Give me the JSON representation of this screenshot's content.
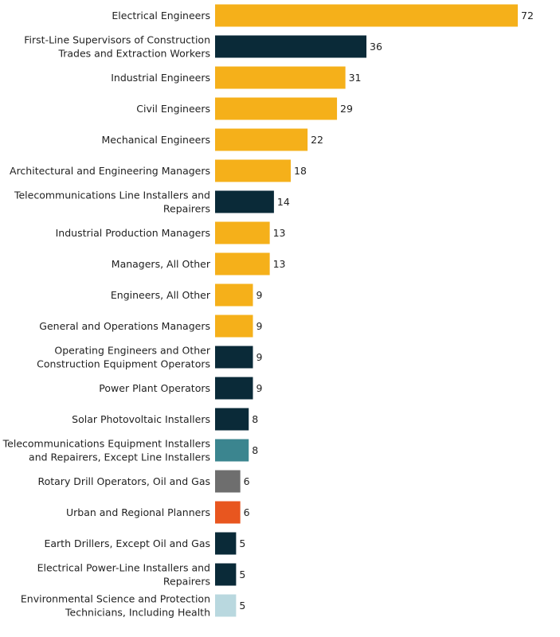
{
  "chart_data": {
    "type": "bar",
    "orientation": "horizontal",
    "title": "",
    "xlabel": "",
    "ylabel": "",
    "xlim": [
      0,
      72
    ],
    "grid": false,
    "legend": "none",
    "palette": {
      "gold": "#f5b01a",
      "navy": "#0a2a38",
      "teal": "#3b858f",
      "gray": "#6e6e6e",
      "orange": "#e8561f",
      "lightblue": "#b9d8df"
    },
    "categories": [
      [
        "Electrical Engineers"
      ],
      [
        "First-Line Supervisors of Construction",
        "Trades and Extraction Workers"
      ],
      [
        "Industrial Engineers"
      ],
      [
        "Civil Engineers"
      ],
      [
        "Mechanical Engineers"
      ],
      [
        "Architectural and Engineering Managers"
      ],
      [
        "Telecommunications Line Installers and",
        "Repairers"
      ],
      [
        "Industrial Production Managers"
      ],
      [
        "Managers, All Other"
      ],
      [
        "Engineers, All Other"
      ],
      [
        "General and Operations Managers"
      ],
      [
        "Operating Engineers and Other",
        "Construction Equipment Operators"
      ],
      [
        "Power Plant Operators"
      ],
      [
        "Solar Photovoltaic Installers"
      ],
      [
        "Telecommunications Equipment Installers",
        "and Repairers, Except Line Installers"
      ],
      [
        "Rotary Drill Operators, Oil and Gas"
      ],
      [
        "Urban and Regional Planners"
      ],
      [
        "Earth Drillers, Except Oil and Gas"
      ],
      [
        "Electrical Power-Line Installers and",
        "Repairers"
      ],
      [
        "Environmental Science and Protection",
        "Technicians, Including Health"
      ]
    ],
    "values": [
      72,
      36,
      31,
      29,
      22,
      18,
      14,
      13,
      13,
      9,
      9,
      9,
      9,
      8,
      8,
      6,
      6,
      5,
      5,
      5
    ],
    "value_labels": [
      "72",
      "36",
      "31",
      "29",
      "22",
      "18",
      "14",
      "13",
      "13",
      "9",
      "9",
      "9",
      "9",
      "8",
      "8",
      "6",
      "6",
      "5",
      "5",
      "5"
    ],
    "colors": [
      "#f5b01a",
      "#0a2a38",
      "#f5b01a",
      "#f5b01a",
      "#f5b01a",
      "#f5b01a",
      "#0a2a38",
      "#f5b01a",
      "#f5b01a",
      "#f5b01a",
      "#f5b01a",
      "#0a2a38",
      "#0a2a38",
      "#0a2a38",
      "#3b858f",
      "#6e6e6e",
      "#e8561f",
      "#0a2a38",
      "#0a2a38",
      "#b9d8df"
    ]
  }
}
